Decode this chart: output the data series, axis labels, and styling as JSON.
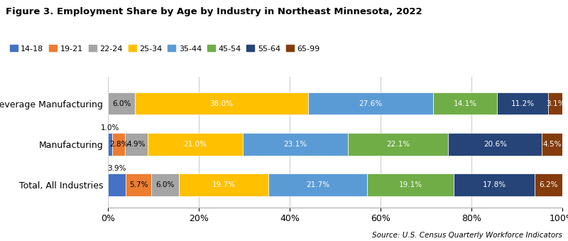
{
  "title": "Figure 3. Employment Share by Age by Industry in Northeast Minnesota, 2022",
  "source": "Source: U.S. Census Quarterly Workforce Indicators",
  "categories": [
    "Beverage Manufacturing",
    "Manufacturing",
    "Total, All Industries"
  ],
  "age_groups": [
    "14-18",
    "19-21",
    "22-24",
    "25-34",
    "35-44",
    "45-54",
    "55-64",
    "65-99"
  ],
  "colors": [
    "#4472C4",
    "#ED7D31",
    "#A5A5A5",
    "#FFC000",
    "#5B9BD5",
    "#70AD47",
    "#264478",
    "#843C0C"
  ],
  "data": {
    "Beverage Manufacturing": [
      0.0,
      0.0,
      6.0,
      38.0,
      27.6,
      14.1,
      11.2,
      3.1
    ],
    "Manufacturing": [
      1.0,
      2.8,
      4.9,
      21.0,
      23.1,
      22.1,
      20.6,
      4.5
    ],
    "Total, All Industries": [
      3.9,
      5.7,
      6.0,
      19.7,
      21.7,
      19.1,
      17.8,
      6.2
    ]
  },
  "label_data": {
    "Beverage Manufacturing": [
      null,
      null,
      "6.0%",
      "38.0%",
      "27.6%",
      "14.1%",
      "11.2%",
      "3.1%"
    ],
    "Manufacturing": [
      "1.0%",
      "2.8%",
      "4.9%",
      "21.0%",
      "23.1%",
      "22.1%",
      "20.6%",
      "4.5%"
    ],
    "Total, All Industries": [
      "3.9%",
      "5.7%",
      "6.0%",
      "19.7%",
      "21.7%",
      "19.1%",
      "17.8%",
      "6.2%"
    ]
  },
  "above_bar_indices": {
    "Beverage Manufacturing": [],
    "Manufacturing": [
      0
    ],
    "Total, All Industries": [
      0
    ]
  },
  "figsize": [
    8.0,
    3.39
  ],
  "dpi": 100
}
